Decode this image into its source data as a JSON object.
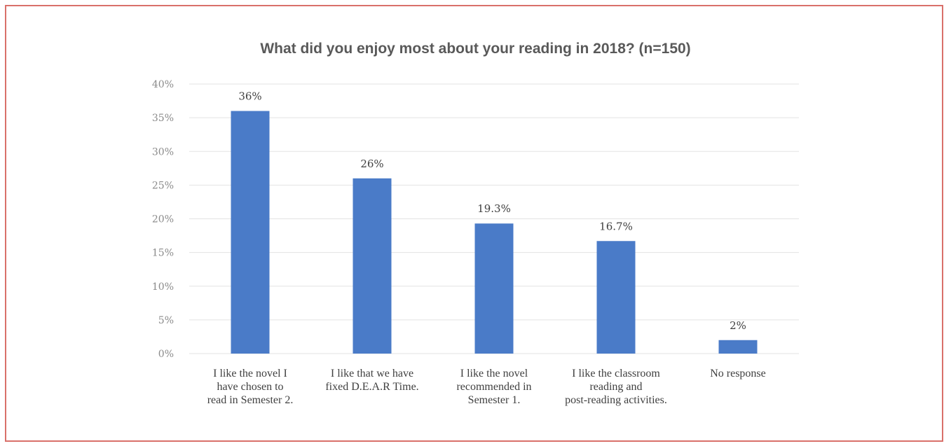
{
  "chart_data": {
    "type": "bar",
    "title": "What did you enjoy most about your reading in 2018? (n=150)",
    "xlabel": "",
    "ylabel": "",
    "categories": [
      [
        "I like the novel I",
        "have chosen to",
        "read in Semester 2."
      ],
      [
        "I like that we have",
        "fixed D.E.A.R Time."
      ],
      [
        "I like the novel",
        "recommended in",
        "Semester 1."
      ],
      [
        "I like the classroom",
        "reading and",
        "post-reading activities."
      ],
      [
        "No response"
      ]
    ],
    "values": [
      36,
      26,
      19.3,
      16.7,
      2
    ],
    "data_labels": [
      "36%",
      "26%",
      "19.3%",
      "16.7%",
      "2%"
    ],
    "yticks": [
      0,
      5,
      10,
      15,
      20,
      25,
      30,
      35,
      40
    ],
    "ytick_labels": [
      "0%",
      "5%",
      "10%",
      "15%",
      "20%",
      "25%",
      "30%",
      "35%",
      "40%"
    ],
    "ylim": [
      0,
      40
    ],
    "grid": true,
    "legend": "none",
    "colors": {
      "bar": "#4a7bc8",
      "grid": "#e3e3e3",
      "border": "#d9706a"
    }
  }
}
